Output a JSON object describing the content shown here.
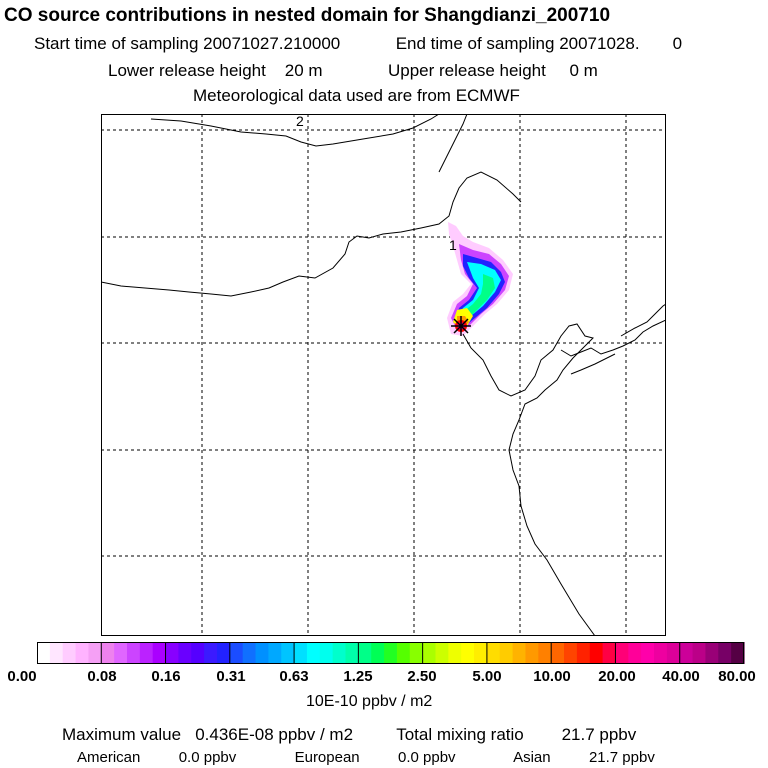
{
  "title": "CO  source contributions in nested domain for Shangdianzi_200710",
  "sampling": {
    "start_label": "Start time of sampling",
    "start_value": "20071027.210000",
    "end_label": "End time of sampling",
    "end_value": "20071028.",
    "end_suffix": "0"
  },
  "release": {
    "lower_label": "Lower release height",
    "lower_value": "20 m",
    "upper_label": "Upper release height",
    "upper_value": "0 m"
  },
  "met_line": "Meteorological data used are from ECMWF",
  "map": {
    "grid_labels": [
      "2",
      "1"
    ],
    "receptor_marker": "asterisk",
    "colors": {
      "coast": "#000000",
      "grid": "#000000"
    }
  },
  "colorbar": {
    "tick_labels": [
      "0.00",
      "0.08",
      "0.16",
      "0.31",
      "0.63",
      "1.25",
      "2.50",
      "5.00",
      "10.00",
      "20.00",
      "40.00",
      "80.00"
    ],
    "units": "10E-10 ppbv / m2",
    "segment_colors": [
      "#ffffff",
      "#ffe6ff",
      "#ffccff",
      "#ffb3ff",
      "#f5a0f5",
      "#ee82ee",
      "#e066ff",
      "#cc44ff",
      "#bb22ff",
      "#aa00ff",
      "#8800ff",
      "#6a00ff",
      "#5500ff",
      "#3b1aff",
      "#2222ff",
      "#1b4dff",
      "#1070ff",
      "#0090ff",
      "#00a8ff",
      "#00c4ff",
      "#00e0ff",
      "#00ffff",
      "#00ffee",
      "#00ffcc",
      "#00ffaa",
      "#00ff88",
      "#00ff55",
      "#22ff22",
      "#55ff00",
      "#88ff00",
      "#aaff00",
      "#ccff00",
      "#eeff00",
      "#ffff00",
      "#ffee00",
      "#ffdd00",
      "#ffcc00",
      "#ffb300",
      "#ff9900",
      "#ff8000",
      "#ff6600",
      "#ff4400",
      "#ff2200",
      "#ff0000",
      "#ff0044",
      "#ff0077",
      "#ff0099",
      "#ff00aa",
      "#ee00a0",
      "#dd0099",
      "#cc0099",
      "#bb0088",
      "#990077",
      "#770066",
      "#550044"
    ]
  },
  "summary": {
    "max_label": "Maximum value",
    "max_value": "0.436E-08 ppbv / m2",
    "total_label": "Total mixing ratio",
    "total_value": "21.7 ppbv",
    "regions": [
      {
        "name": "American",
        "value": "0.0 ppbv"
      },
      {
        "name": "European",
        "value": "0.0 ppbv"
      },
      {
        "name": "Asian",
        "value": "21.7 ppbv"
      }
    ]
  }
}
